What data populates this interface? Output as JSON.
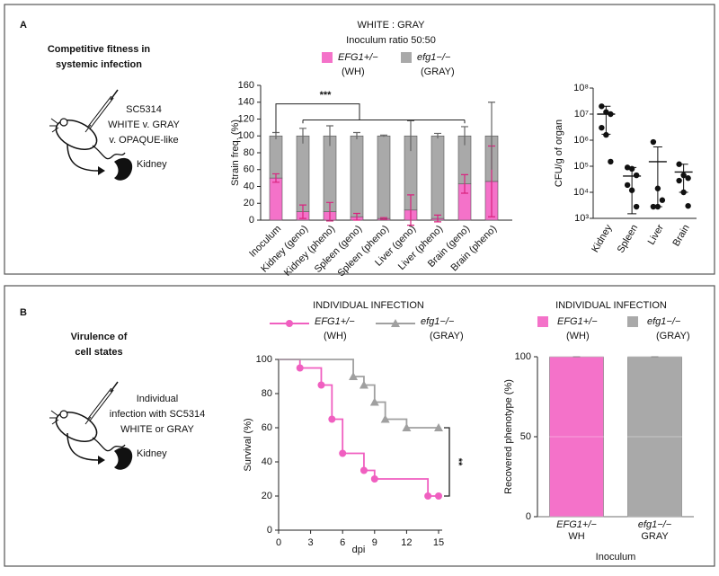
{
  "panels": [
    {
      "letter": "A",
      "heading": [
        "Competitive fitness in",
        "systemic infection"
      ],
      "strain_lines": [
        "SC5314",
        "WHITE v. GRAY",
        "v. OPAQUE-like"
      ],
      "organ": "Kidney"
    },
    {
      "letter": "B",
      "heading": [
        "Virulence of",
        "cell states"
      ],
      "strain_lines": [
        "Individual",
        "infection with SC5314",
        "WHITE or GRAY"
      ],
      "organ": "Kidney"
    }
  ],
  "chart_data": [
    {
      "type": "bar",
      "stacked": true,
      "title": "WHITE : GRAY",
      "subtitle": "Inoculum ratio 50:50",
      "y_label": "Strain freq. (%)",
      "categories": [
        "Inoculum",
        "Kidney (geno)",
        "Kidney (pheno)",
        "Spleen (geno)",
        "Spleen (pheno)",
        "Liver (geno)",
        "Liver (pheno)",
        "Brain (geno)",
        "Brain (pheno)"
      ],
      "series": [
        {
          "name": "EFG1+/−",
          "tag": "(WH)",
          "color": "#f472c9",
          "error_color": "#d9237f",
          "values": [
            50,
            10,
            10,
            4,
            2,
            12,
            2,
            43,
            46
          ],
          "errors": [
            5,
            8,
            11,
            4,
            1,
            18,
            4,
            11,
            42
          ]
        },
        {
          "name": "efg1−/−",
          "tag": "(GRAY)",
          "color": "#a9a9a9",
          "error_color": "#666666",
          "values": [
            50,
            90,
            90,
            96,
            98,
            88,
            98,
            57,
            54
          ],
          "errors": [
            4,
            9,
            12,
            4,
            1,
            18,
            3,
            11,
            40
          ]
        }
      ],
      "ylim": [
        0,
        160
      ],
      "yticks": [
        0,
        20,
        40,
        60,
        80,
        100,
        120,
        140,
        160
      ],
      "annotation": "***"
    },
    {
      "type": "scatter",
      "log_scale": true,
      "y_label": "CFU/g of organ",
      "categories": [
        "Kidney",
        "Spleen",
        "Liver",
        "Brain"
      ],
      "color": "#111111",
      "points": [
        [
          20000000,
          12000000,
          10000000,
          3000000,
          1600000,
          150000
        ],
        [
          90000,
          80000,
          45000,
          19000,
          12000,
          2800
        ],
        [
          850000,
          14000,
          5000,
          2800,
          2800
        ],
        [
          120000,
          45000,
          35000,
          28000,
          10000,
          3000
        ]
      ],
      "means": [
        10000000,
        42000,
        150000,
        60000
      ],
      "upper": [
        20000000,
        90000,
        550000,
        120000
      ],
      "lower": [
        1700000,
        1500,
        2800,
        10000
      ],
      "ylim": [
        1000,
        100000000
      ],
      "yticks": [
        {
          "value": 1000,
          "label": "10³"
        },
        {
          "value": 10000,
          "label": "10⁴"
        },
        {
          "value": 100000,
          "label": "10⁵"
        },
        {
          "value": 1000000,
          "label": "10⁶"
        },
        {
          "value": 10000000,
          "label": "10⁷"
        },
        {
          "value": 100000000,
          "label": "10⁸"
        }
      ]
    },
    {
      "type": "line",
      "step": true,
      "title": "INDIVIDUAL INFECTION",
      "x_label": "dpi",
      "y_label": "Survival (%)",
      "series": [
        {
          "name": "EFG1+/−",
          "tag": "(WH)",
          "color": "#f05fc0",
          "marker": "circle",
          "x": [
            0,
            2,
            4,
            5,
            6,
            8,
            9,
            14,
            15
          ],
          "values": [
            100,
            95,
            85,
            65,
            45,
            35,
            30,
            20,
            20
          ]
        },
        {
          "name": "efg1−/−",
          "tag": "(GRAY)",
          "color": "#a0a0a0",
          "marker": "triangle",
          "x": [
            0,
            7,
            8,
            9,
            10,
            12,
            15
          ],
          "values": [
            100,
            90,
            85,
            75,
            65,
            60,
            60
          ]
        }
      ],
      "xlim": [
        0,
        15
      ],
      "xticks": [
        0,
        3,
        6,
        9,
        12,
        15
      ],
      "ylim": [
        0,
        100
      ],
      "yticks": [
        0,
        20,
        40,
        60,
        80,
        100
      ],
      "annotation": "**"
    },
    {
      "type": "bar",
      "title": "INDIVIDUAL INFECTION",
      "y_label": "Recovered phenotype (%)",
      "x_label": "Inoculum",
      "categories": [
        "EFG1+/−",
        "efg1−/−"
      ],
      "category_sublabels": [
        "WH",
        "GRAY"
      ],
      "legend_tags": [
        "(WH)",
        "(GRAY)"
      ],
      "values": [
        100,
        100
      ],
      "colors": [
        "#f472c9",
        "#a9a9a9"
      ],
      "ylim": [
        0,
        100
      ],
      "yticks": [
        0,
        50,
        100
      ],
      "grid": true
    }
  ]
}
